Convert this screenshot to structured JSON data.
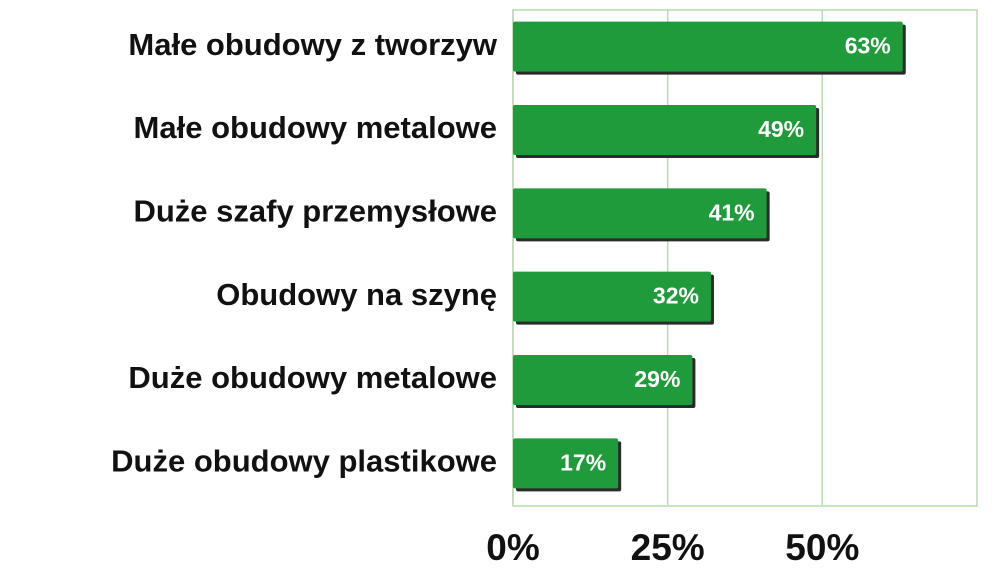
{
  "chart_data": {
    "type": "barh",
    "categories": [
      "Małe obudowy z tworzyw",
      "Małe obudowy metalowe",
      "Duże szafy przemysłowe",
      "Obudowy na szynę",
      "Duże obudowy metalowe",
      "Duże obudowy plastikowe"
    ],
    "values": [
      63,
      49,
      41,
      32,
      29,
      17
    ],
    "value_labels": [
      "63%",
      "49%",
      "41%",
      "32%",
      "29%",
      "17%"
    ],
    "color": "#1f9b3b",
    "xlim": [
      0,
      75
    ],
    "xticks": [
      {
        "value": 0,
        "label": "0%"
      },
      {
        "value": 25,
        "label": "25%"
      },
      {
        "value": 50,
        "label": "50%"
      }
    ],
    "grid": true
  }
}
